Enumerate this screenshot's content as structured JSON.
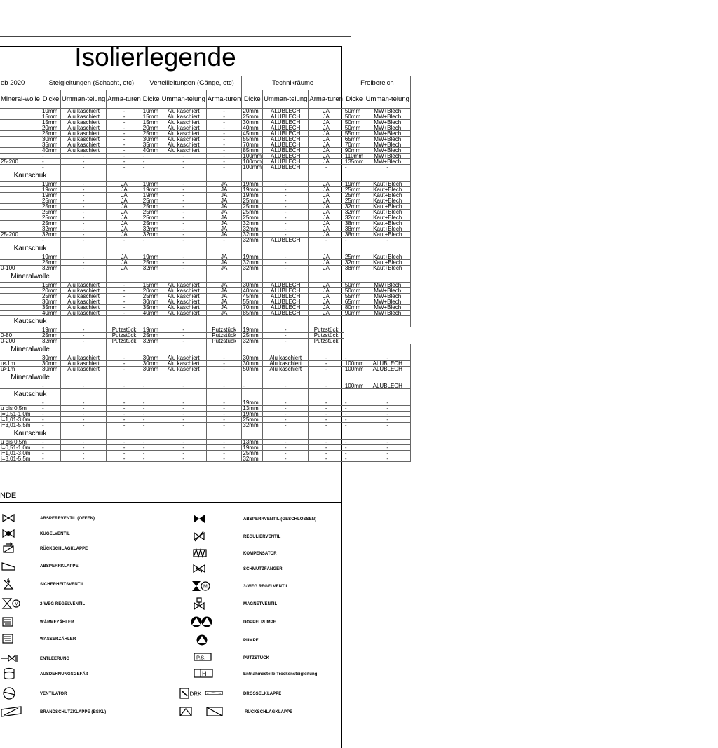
{
  "title": "Isolierlegende",
  "header": {
    "date": "eb 2020",
    "first_col": "Mineral-wolle",
    "groups": [
      "Steigleitungen (Schacht, etc)",
      "Verteilleitungen (Gänge, etc)",
      "Technikräume",
      "Freibereich"
    ],
    "sub": [
      "Dicke",
      "Umman-telung",
      "Arma-turen",
      "Dicke",
      "Umman-telung",
      "Arma-turen",
      "Dicke",
      "Umman-telung",
      "Arma-turen",
      "Dicke",
      "Umman-telung"
    ]
  },
  "sections": [
    {
      "label": "",
      "rows": [
        [
          "",
          "10mm",
          "Alu kaschiert",
          "-",
          "10mm",
          "Alu kaschiert",
          "-",
          "20mm",
          "ALUBLECH",
          "JA",
          "50mm",
          "MW+Blech"
        ],
        [
          "",
          "15mm",
          "Alu kaschiert",
          "-",
          "15mm",
          "Alu kaschiert",
          "-",
          "25mm",
          "ALUBLECH",
          "JA",
          "50mm",
          "MW+Blech"
        ],
        [
          "",
          "15mm",
          "Alu kaschiert",
          "-",
          "15mm",
          "Alu kaschiert",
          "-",
          "30mm",
          "ALUBLECH",
          "JA",
          "50mm",
          "MW+Blech"
        ],
        [
          "",
          "20mm",
          "Alu kaschiert",
          "-",
          "20mm",
          "Alu kaschiert",
          "-",
          "40mm",
          "ALUBLECH",
          "JA",
          "50mm",
          "MW+Blech"
        ],
        [
          "",
          "25mm",
          "Alu kaschiert",
          "-",
          "25mm",
          "Alu kaschiert",
          "-",
          "45mm",
          "ALUBLECH",
          "JA",
          "55mm",
          "MW+Blech"
        ],
        [
          "",
          "30mm",
          "Alu kaschiert",
          "-",
          "30mm",
          "Alu kaschiert",
          "-",
          "55mm",
          "ALUBLECH",
          "JA",
          "65mm",
          "MW+Blech"
        ],
        [
          "",
          "35mm",
          "Alu kaschiert",
          "-",
          "35mm",
          "Alu kaschiert",
          "-",
          "70mm",
          "ALUBLECH",
          "JA",
          "70mm",
          "MW+Blech"
        ],
        [
          "",
          "40mm",
          "Alu kaschiert",
          "-",
          "40mm",
          "Alu kaschiert",
          "-",
          "85mm",
          "ALUBLECH",
          "JA",
          "90mm",
          "MW+Blech"
        ],
        [
          "",
          "-",
          "-",
          "-",
          "-",
          "-",
          "-",
          "100mm",
          "ALUBLECH",
          "JA",
          "110mm",
          "MW+Blech"
        ],
        [
          "25-200",
          "-",
          "-",
          "-",
          "-",
          "-",
          "-",
          "100mm",
          "ALUBLECH",
          "JA",
          "135mm",
          "MW+Blech"
        ],
        [
          "",
          "-",
          "-",
          "-",
          "-",
          "-",
          "-",
          "100mm",
          "ALUBLECH",
          "-",
          "-",
          "-"
        ]
      ]
    },
    {
      "label": "Kautschuk",
      "rows": [
        [
          "",
          "19mm",
          "-",
          "JA",
          "19mm",
          "-",
          "JA",
          "19mm",
          "-",
          "JA",
          "19mm",
          "Kaut+Blech"
        ],
        [
          "",
          "19mm",
          "-",
          "JA",
          "19mm",
          "-",
          "JA",
          "19mm",
          "-",
          "JA",
          "25mm",
          "Kaut+Blech"
        ],
        [
          "",
          "19mm",
          "-",
          "JA",
          "19mm",
          "-",
          "JA",
          "19mm",
          "-",
          "JA",
          "25mm",
          "Kaut+Blech"
        ],
        [
          "",
          "25mm",
          "-",
          "JA",
          "25mm",
          "-",
          "JA",
          "25mm",
          "-",
          "JA",
          "25mm",
          "Kaut+Blech"
        ],
        [
          "",
          "25mm",
          "-",
          "JA",
          "25mm",
          "-",
          "JA",
          "25mm",
          "-",
          "JA",
          "32mm",
          "Kaut+Blech"
        ],
        [
          "",
          "25mm",
          "-",
          "JA",
          "25mm",
          "-",
          "JA",
          "25mm",
          "-",
          "JA",
          "32mm",
          "Kaut+Blech"
        ],
        [
          "",
          "25mm",
          "-",
          "JA",
          "25mm",
          "-",
          "JA",
          "25mm",
          "-",
          "JA",
          "32mm",
          "Kaut+Blech"
        ],
        [
          "",
          "25mm",
          "-",
          "JA",
          "25mm",
          "-",
          "JA",
          "32mm",
          "-",
          "JA",
          "38mm",
          "Kaut+Blech"
        ],
        [
          "",
          "32mm",
          "-",
          "JA",
          "32mm",
          "-",
          "JA",
          "32mm",
          "-",
          "JA",
          "38mm",
          "Kaut+Blech"
        ],
        [
          "25-200",
          "32mm",
          "-",
          "JA",
          "32mm",
          "-",
          "JA",
          "32mm",
          "-",
          "JA",
          "38mm",
          "Kaut+Blech"
        ],
        [
          "",
          "-",
          "-",
          "-",
          "-",
          "-",
          "-",
          "32mm",
          "ALUBLECH",
          "-",
          "-",
          "-"
        ]
      ]
    },
    {
      "label": "Kautschuk",
      "rows": [
        [
          "",
          "19mm",
          "-",
          "JA",
          "19mm",
          "-",
          "JA",
          "19mm",
          "-",
          "JA",
          "25mm",
          "Kaut+Blech"
        ],
        [
          "",
          "25mm",
          "-",
          "JA",
          "25mm",
          "-",
          "JA",
          "32mm",
          "-",
          "JA",
          "32mm",
          "Kaut+Blech"
        ],
        [
          "0-100",
          "32mm",
          "-",
          "JA",
          "32mm",
          "-",
          "JA",
          "32mm",
          "-",
          "JA",
          "38mm",
          "Kaut+Blech"
        ]
      ]
    },
    {
      "label": "Mineralwolle",
      "rows": [
        [
          "",
          "15mm",
          "Alu kaschiert",
          "-",
          "15mm",
          "Alu kaschiert",
          "JA",
          "30mm",
          "ALUBLECH",
          "JA",
          "50mm",
          "MW+Blech"
        ],
        [
          "",
          "20mm",
          "Alu kaschiert",
          "-",
          "20mm",
          "Alu kaschiert",
          "JA",
          "40mm",
          "ALUBLECH",
          "JA",
          "50mm",
          "MW+Blech"
        ],
        [
          "",
          "25mm",
          "Alu kaschiert",
          "-",
          "25mm",
          "Alu kaschiert",
          "JA",
          "45mm",
          "ALUBLECH",
          "JA",
          "55mm",
          "MW+Blech"
        ],
        [
          "",
          "30mm",
          "Alu kaschiert",
          "-",
          "30mm",
          "Alu kaschiert",
          "JA",
          "55mm",
          "ALUBLECH",
          "JA",
          "65mm",
          "MW+Blech"
        ],
        [
          "",
          "35mm",
          "Alu kaschiert",
          "-",
          "35mm",
          "Alu kaschiert",
          "JA",
          "70mm",
          "ALUBLECH",
          "JA",
          "80mm",
          "MW+Blech"
        ],
        [
          "",
          "40mm",
          "Alu kaschiert",
          "-",
          "40mm",
          "Alu kaschiert",
          "JA",
          "85mm",
          "ALUBLECH",
          "JA",
          "90mm",
          "MW+Blech"
        ]
      ]
    },
    {
      "label": "Kautschuk",
      "no_free": true,
      "rows": [
        [
          "",
          "19mm",
          "-",
          "Putzstück",
          "19mm",
          "-",
          "Putzstück",
          "19mm",
          "-",
          "Putzstück"
        ],
        [
          "0-80",
          "25mm",
          "-",
          "Putzstück",
          "25mm",
          "-",
          "Putzstück",
          "25mm",
          "-",
          "Putzstück"
        ],
        [
          "0-200",
          "32mm",
          "-",
          "Putzstück",
          "32mm",
          "-",
          "Putzstück",
          "32mm",
          "-",
          "Putzstück"
        ]
      ]
    },
    {
      "label": "Mineralwolle",
      "rows": [
        [
          "",
          "30mm",
          "Alu kaschiert",
          "-",
          "30mm",
          "Alu kaschiert",
          "-",
          "30mm",
          "Alu kaschiert",
          "-",
          "-",
          "-"
        ],
        [
          "u<1m",
          "30mm",
          "Alu kaschiert",
          "-",
          "30mm",
          "Alu kaschiert",
          "-",
          "30mm",
          "Alu kaschiert",
          "-",
          "100mm",
          "ALUBLECH"
        ],
        [
          "u>1m",
          "30mm",
          "Alu kaschiert",
          "-",
          "30mm",
          "Alu kaschiert",
          "-",
          "50mm",
          "Alu kaschiert",
          "-",
          "100mm",
          "ALUBLECH"
        ]
      ]
    },
    {
      "label": "Mineralwolle",
      "rows": [
        [
          "",
          "-",
          "-",
          "-",
          "-",
          "-",
          "-",
          "-",
          "-",
          "-",
          "100mm",
          "ALUBLECH"
        ]
      ]
    },
    {
      "label": "Kautschuk",
      "rows": [
        [
          "",
          "-",
          "-",
          "-",
          "-",
          "-",
          "-",
          "19mm",
          "-",
          "-",
          "-",
          "-"
        ],
        [
          "u bis 0,5m",
          "-",
          "-",
          "-",
          "-",
          "-",
          "-",
          "13mm",
          "-",
          "-",
          "-",
          "-"
        ],
        [
          "i=0,51-1,0m",
          "-",
          "-",
          "-",
          "-",
          "-",
          "-",
          "19mm",
          "-",
          "-",
          "-",
          "-"
        ],
        [
          "i=1,01-3,0m",
          "-",
          "-",
          "-",
          "-",
          "-",
          "-",
          "25mm",
          "-",
          "-",
          "-",
          "-"
        ],
        [
          "i=3,01-5,5m",
          "-",
          "-",
          "-",
          "-",
          "-",
          "-",
          "32mm",
          "-",
          "-",
          "-",
          "-"
        ]
      ]
    },
    {
      "label": "Kautschuk",
      "rows": [
        [
          "u bis 0,5m",
          "-",
          "-",
          "-",
          "-",
          "-",
          "-",
          "13mm",
          "-",
          "-",
          "-",
          "-"
        ],
        [
          "i=0,51-1,0m",
          "-",
          "-",
          "-",
          "-",
          "-",
          "-",
          "19mm",
          "-",
          "-",
          "-",
          "-"
        ],
        [
          "i=1,01-3,0m",
          "-",
          "-",
          "-",
          "-",
          "-",
          "-",
          "25mm",
          "-",
          "-",
          "-",
          "-"
        ],
        [
          "i=3,01-5,5m",
          "-",
          "-",
          "-",
          "-",
          "-",
          "-",
          "32mm",
          "-",
          "-",
          "-",
          "-"
        ]
      ]
    }
  ],
  "legend": {
    "title": "NDE",
    "left": [
      {
        "icon": "gate-valve-open-icon",
        "label": "ABSPERRVENTIL (OFFEN)"
      },
      {
        "icon": "ball-valve-icon",
        "label": "KUGELVENTIL"
      },
      {
        "icon": "check-flap-icon",
        "label": "RÜCKSCHLAGKLAPPE"
      },
      {
        "icon": "shutoff-flap-icon",
        "label": "ABSPERRKLAPPE"
      },
      {
        "icon": "safety-valve-icon",
        "label": "SICHERHEITSVENTIL"
      },
      {
        "icon": "two-way-control-valve-icon",
        "label": "2-WEG REGELVENTIL"
      },
      {
        "icon": "heat-meter-icon",
        "label": "WÄRMEZÄHLER"
      },
      {
        "icon": "water-meter-icon",
        "label": "WASSERZÄHLER"
      },
      {
        "icon": "drain-valve-icon",
        "label": "ENTLEERUNG"
      },
      {
        "icon": "expansion-vessel-icon",
        "label": "AUSDEHNUNGSGEFÄß"
      },
      {
        "icon": "fan-icon",
        "label": "VENTILATOR"
      },
      {
        "icon": "fire-damper-icon",
        "label": "BRANDSCHUTZKLAPPE (BSKL)"
      }
    ],
    "right": [
      {
        "icon": "gate-valve-closed-icon",
        "label": "ABSPERRVENTIL (GESCHLOSSEN)"
      },
      {
        "icon": "regulating-valve-icon",
        "label": "REGULIERVENTIL"
      },
      {
        "icon": "compensator-icon",
        "label": "KOMPENSATOR"
      },
      {
        "icon": "strainer-icon",
        "label": "SCHMUTZFÄNGER"
      },
      {
        "icon": "three-way-control-valve-icon",
        "label": "3-WEG REGELVENTIL"
      },
      {
        "icon": "solenoid-valve-icon",
        "label": "MAGNETVENTIL"
      },
      {
        "icon": "double-pump-icon",
        "label": "DOPPELPUMPE"
      },
      {
        "icon": "pump-icon",
        "label": "PUMPE"
      },
      {
        "icon": "cleaning-piece-icon",
        "label": "PUTZSTÜCK",
        "text": "P.S."
      },
      {
        "icon": "dry-riser-outlet-icon",
        "label": "Entnahmestelle Trockensteigleitung",
        "text": "H"
      },
      {
        "icon": "throttle-damper-icon",
        "label": "DROSSELKLAPPE",
        "text": "DRK"
      },
      {
        "icon": "backflow-flap-icon",
        "label": "RÜCKSCHLAGKLAPPE"
      }
    ]
  }
}
